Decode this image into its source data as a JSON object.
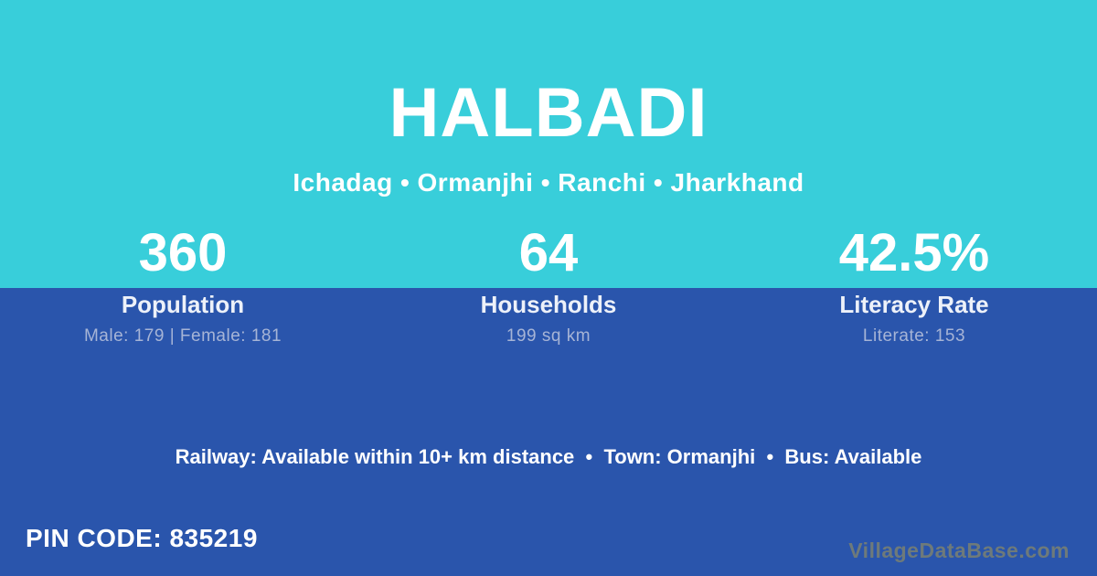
{
  "colors": {
    "top_bg": "#38CEDA",
    "bottom_bg": "#2A55AC",
    "label_text": "#EDF1F9",
    "muted_text": "#A6B4D6",
    "watermark": "#6E7A7A"
  },
  "header": {
    "title": "HALBADI",
    "subtitle": "Ichadag • Ormanjhi • Ranchi • Jharkhand"
  },
  "stats": [
    {
      "value": "360",
      "label": "Population",
      "detail": "Male: 179 | Female: 181"
    },
    {
      "value": "64",
      "label": "Households",
      "detail": "199 sq km"
    },
    {
      "value": "42.5%",
      "label": "Literacy Rate",
      "detail": "Literate: 153"
    }
  ],
  "info_line": "Railway: Available within 10+ km distance  •  Town: Ormanjhi  •  Bus: Available",
  "footer": {
    "pin_code": "PIN CODE: 835219",
    "watermark": "VillageDataBase.com"
  }
}
